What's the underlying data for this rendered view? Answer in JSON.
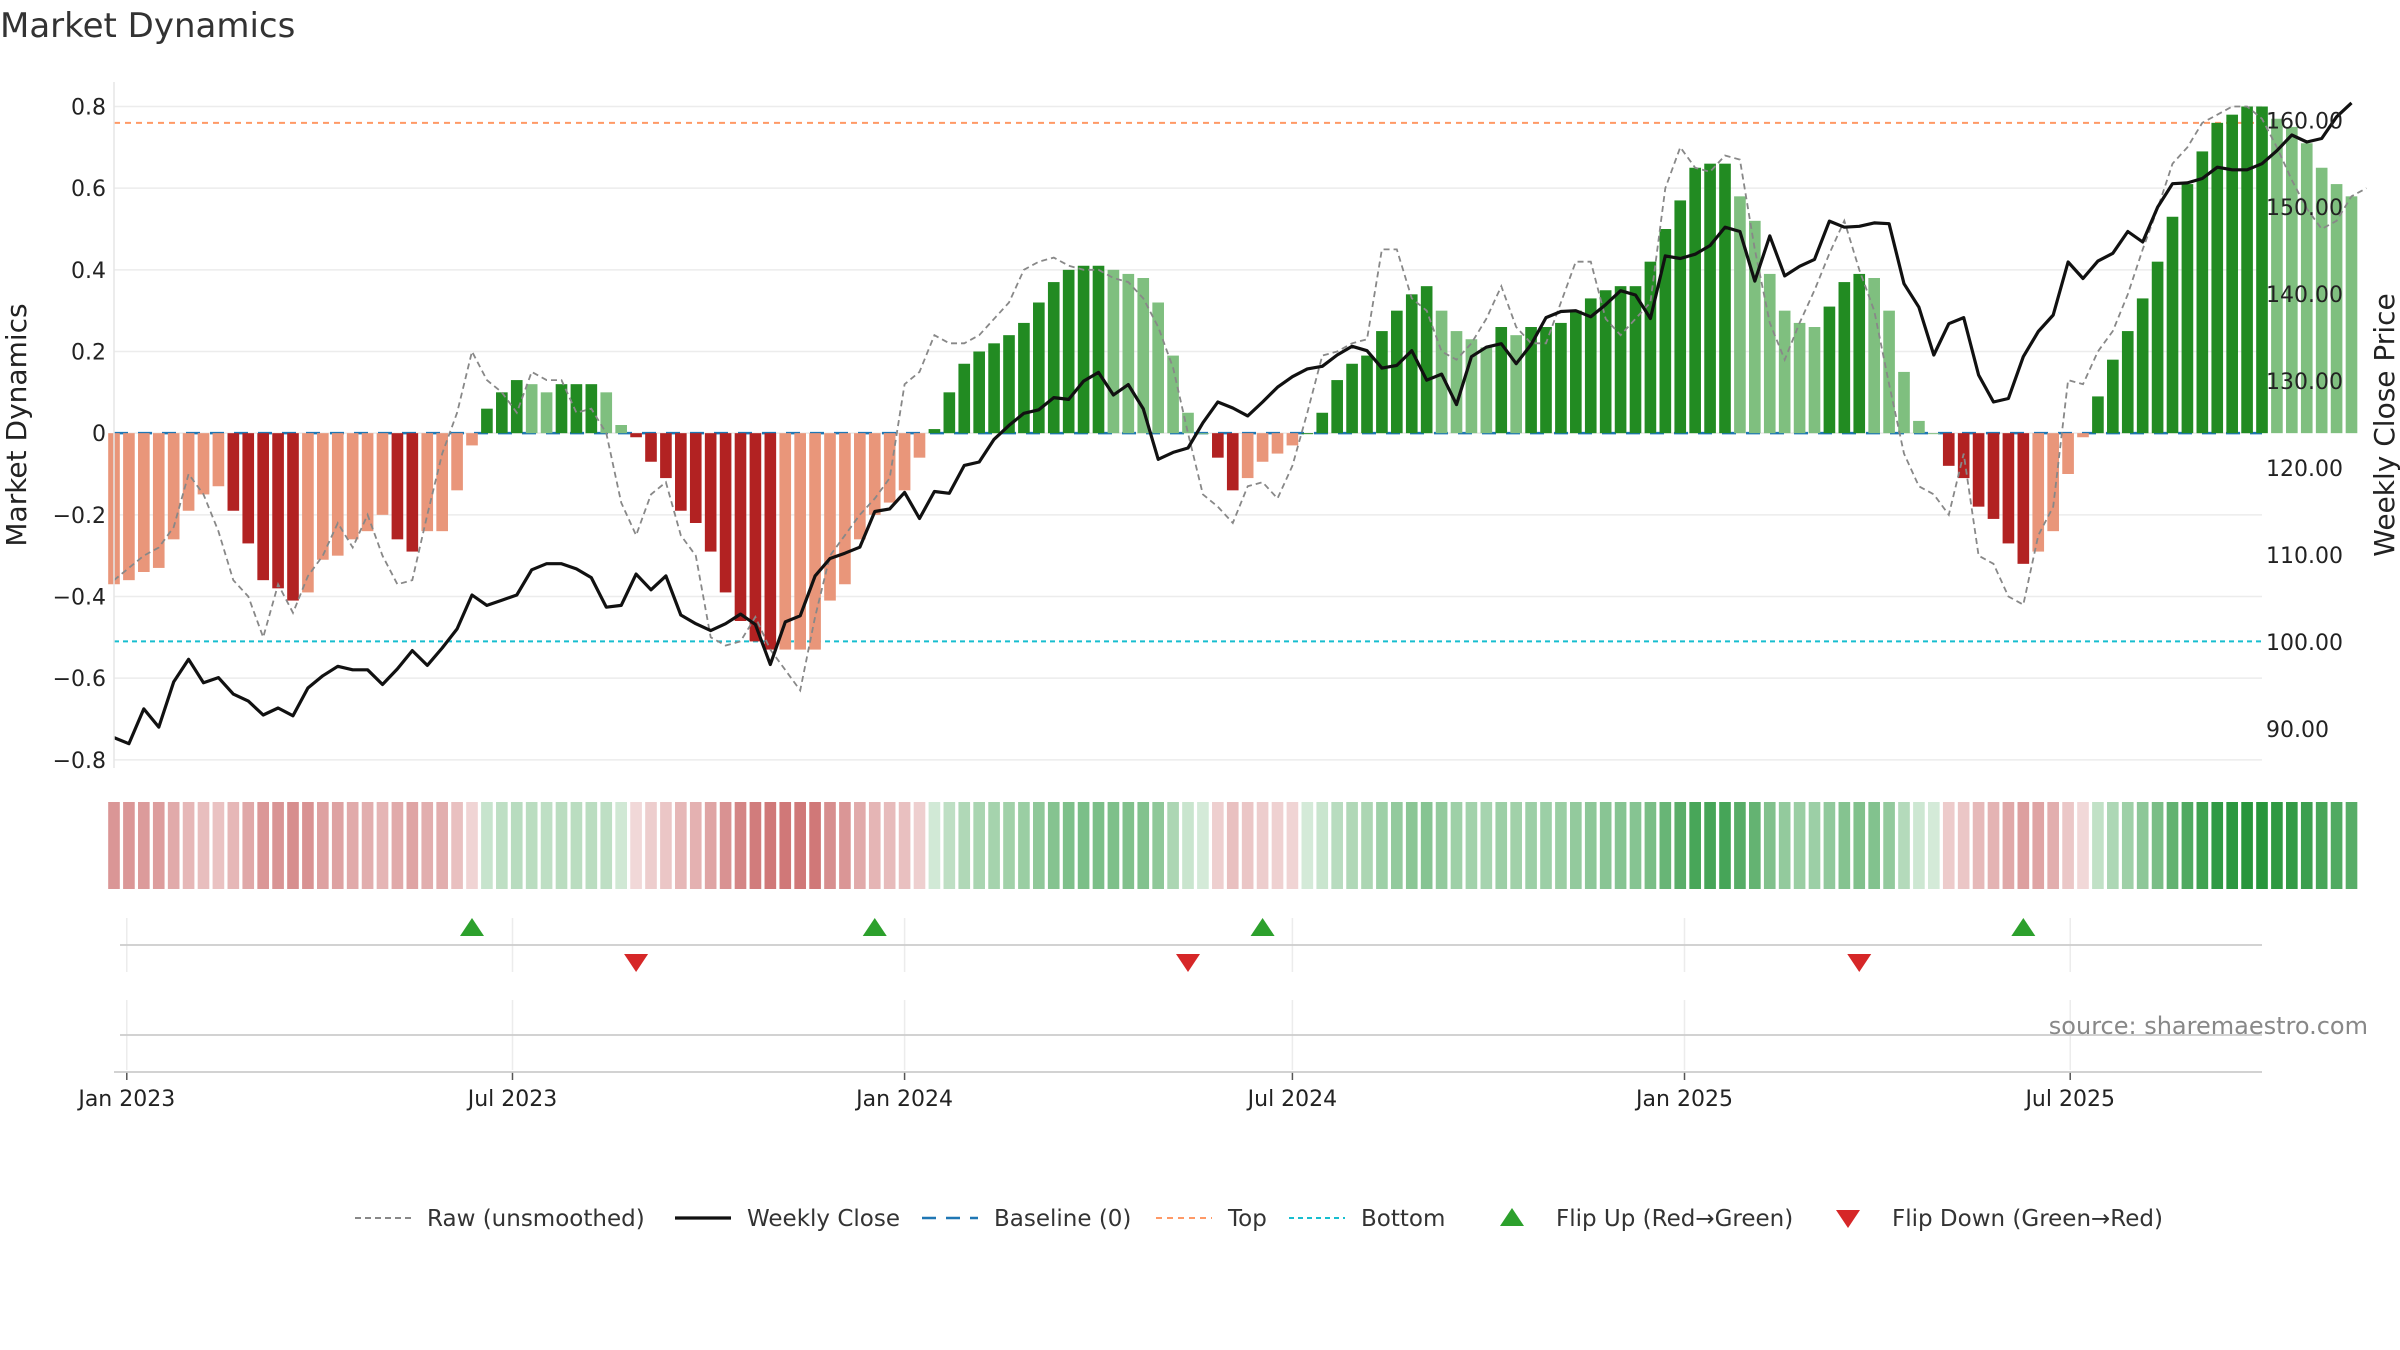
{
  "chart_data": {
    "type": "bar",
    "title": "Market Dynamics",
    "ylabel": "Market Dynamics",
    "y2label": "Weekly Close Price",
    "ylim": [
      -0.82,
      0.86
    ],
    "y2lim": [
      85.5,
      164.4
    ],
    "yticks": [
      0.8,
      0.6,
      0.4,
      0.2,
      0,
      -0.2,
      -0.4,
      -0.6,
      -0.8
    ],
    "ytick_labels": [
      "0.8",
      "0.6",
      "0.4",
      "0.2",
      "0",
      "−0.2",
      "−0.4",
      "−0.6",
      "−0.8"
    ],
    "y2ticks": [
      160,
      150,
      140,
      130,
      120,
      110,
      100,
      90
    ],
    "y2tick_labels": [
      "160.00",
      "150.00",
      "140.00",
      "130.00",
      "120.00",
      "110.00",
      "100.00",
      "90.00"
    ],
    "x_start": "2022-12-26",
    "x_end": "2025-09-29",
    "xticks": [
      "2023-01-01",
      "2023-07-01",
      "2024-01-01",
      "2024-07-01",
      "2025-01-01",
      "2025-07-01"
    ],
    "xtick_labels": [
      "Jan 2023",
      "Jul 2023",
      "Jan 2024",
      "Jul 2024",
      "Jan 2025",
      "Jul 2025"
    ],
    "first_week": "2022-12-26",
    "series": [
      {
        "name": "Market Dynamics",
        "kind": "bar",
        "values": [
          -0.37,
          -0.36,
          -0.34,
          -0.33,
          -0.26,
          -0.19,
          -0.15,
          -0.13,
          -0.19,
          -0.27,
          -0.36,
          -0.38,
          -0.41,
          -0.39,
          -0.31,
          -0.3,
          -0.26,
          -0.24,
          -0.2,
          -0.26,
          -0.29,
          -0.24,
          -0.24,
          -0.14,
          -0.03,
          0.06,
          0.1,
          0.13,
          0.12,
          0.1,
          0.12,
          0.12,
          0.12,
          0.1,
          0.02,
          -0.01,
          -0.07,
          -0.11,
          -0.19,
          -0.22,
          -0.29,
          -0.39,
          -0.46,
          -0.51,
          -0.53,
          -0.53,
          -0.53,
          -0.53,
          -0.41,
          -0.37,
          -0.26,
          -0.2,
          -0.17,
          -0.14,
          -0.06,
          0.01,
          0.1,
          0.17,
          0.2,
          0.22,
          0.24,
          0.27,
          0.32,
          0.37,
          0.4,
          0.41,
          0.41,
          0.4,
          0.39,
          0.38,
          0.32,
          0.19,
          0.05,
          0.0,
          -0.06,
          -0.14,
          -0.11,
          -0.07,
          -0.05,
          -0.03,
          0.0,
          0.05,
          0.13,
          0.17,
          0.19,
          0.25,
          0.3,
          0.34,
          0.36,
          0.3,
          0.25,
          0.23,
          0.21,
          0.26,
          0.24,
          0.26,
          0.26,
          0.27,
          0.3,
          0.33,
          0.35,
          0.36,
          0.36,
          0.42,
          0.5,
          0.57,
          0.65,
          0.66,
          0.66,
          0.58,
          0.52,
          0.39,
          0.3,
          0.27,
          0.26,
          0.31,
          0.37,
          0.39,
          0.38,
          0.3,
          0.15,
          0.03,
          0.0,
          -0.08,
          -0.11,
          -0.18,
          -0.21,
          -0.27,
          -0.32,
          -0.29,
          -0.24,
          -0.1,
          -0.01,
          0.09,
          0.18,
          0.25,
          0.33,
          0.42,
          0.53,
          0.61,
          0.69,
          0.76,
          0.78,
          0.8,
          0.8,
          0.77,
          0.75,
          0.71,
          0.65,
          0.61,
          0.58
        ]
      },
      {
        "name": "Raw (unsmoothed)",
        "kind": "line",
        "values": [
          -0.36,
          -0.33,
          -0.3,
          -0.28,
          -0.23,
          -0.1,
          -0.15,
          -0.24,
          -0.36,
          -0.4,
          -0.5,
          -0.37,
          -0.44,
          -0.35,
          -0.3,
          -0.22,
          -0.28,
          -0.2,
          -0.3,
          -0.37,
          -0.36,
          -0.2,
          -0.05,
          0.05,
          0.2,
          0.13,
          0.1,
          0.05,
          0.15,
          0.13,
          0.13,
          0.05,
          0.06,
          0.0,
          -0.17,
          -0.25,
          -0.15,
          -0.12,
          -0.25,
          -0.3,
          -0.5,
          -0.52,
          -0.51,
          -0.45,
          -0.53,
          -0.58,
          -0.63,
          -0.45,
          -0.3,
          -0.25,
          -0.2,
          -0.16,
          -0.11,
          0.12,
          0.15,
          0.24,
          0.22,
          0.22,
          0.24,
          0.28,
          0.32,
          0.4,
          0.42,
          0.43,
          0.41,
          0.4,
          0.4,
          0.38,
          0.37,
          0.33,
          0.26,
          0.16,
          0.0,
          -0.15,
          -0.18,
          -0.22,
          -0.13,
          -0.12,
          -0.16,
          -0.08,
          0.05,
          0.19,
          0.2,
          0.22,
          0.23,
          0.45,
          0.45,
          0.33,
          0.3,
          0.2,
          0.18,
          0.22,
          0.28,
          0.36,
          0.26,
          0.22,
          0.22,
          0.32,
          0.42,
          0.42,
          0.28,
          0.24,
          0.28,
          0.32,
          0.6,
          0.7,
          0.65,
          0.64,
          0.68,
          0.67,
          0.45,
          0.27,
          0.18,
          0.27,
          0.35,
          0.44,
          0.52,
          0.4,
          0.3,
          0.12,
          -0.05,
          -0.13,
          -0.15,
          -0.2,
          -0.05,
          -0.3,
          -0.32,
          -0.4,
          -0.42,
          -0.25,
          -0.18,
          0.13,
          0.12,
          0.2,
          0.25,
          0.34,
          0.45,
          0.55,
          0.66,
          0.7,
          0.76,
          0.78,
          0.8,
          0.8,
          0.77,
          0.7,
          0.62,
          0.55,
          0.5,
          0.52,
          0.58,
          0.6
        ]
      },
      {
        "name": "Weekly Close",
        "kind": "line",
        "axis": "right",
        "values": [
          89,
          88.3,
          92.3,
          90.2,
          95.4,
          98,
          95.3,
          95.9,
          94,
          93.2,
          91.6,
          92.4,
          91.5,
          94.7,
          96.1,
          97.2,
          96.8,
          96.8,
          95.1,
          96.9,
          99,
          97.3,
          99.3,
          101.5,
          105.4,
          104.2,
          104.8,
          105.4,
          108.3,
          109,
          109,
          108.4,
          107.4,
          104,
          104.2,
          107.8,
          106,
          107.6,
          103.1,
          102.1,
          101.3,
          102.1,
          103.2,
          102,
          97.4,
          102.3,
          103,
          107.6,
          109.6,
          110.2,
          110.9,
          115,
          115.3,
          117.2,
          114.2,
          117.3,
          117.1,
          120.3,
          120.7,
          123.3,
          124.9,
          126.3,
          126.7,
          128.1,
          127.9,
          130,
          131,
          128.4,
          129.6,
          126.8,
          121,
          121.8,
          122.3,
          125.2,
          127.6,
          126.9,
          126,
          127.6,
          129.3,
          130.5,
          131.4,
          131.7,
          133,
          134,
          133.5,
          131.5,
          131.8,
          133.5,
          130.1,
          130.8,
          127.3,
          132.8,
          133.9,
          134.3,
          132,
          134.2,
          137.3,
          138,
          138.1,
          137.4,
          138.8,
          140.4,
          139.9,
          137.2,
          144.4,
          144.1,
          144.6,
          145.6,
          147.7,
          147.2,
          141.5,
          146.7,
          142.1,
          143.2,
          144,
          148.4,
          147.7,
          147.8,
          148.2,
          148.1,
          141.2,
          138.5,
          133,
          136.6,
          137.3,
          130.7,
          127.6,
          128,
          132.8,
          135.7,
          137.6,
          143.7,
          141.8,
          143.8,
          144.7,
          147.2,
          146,
          150,
          152.7,
          152.8,
          153.3,
          154.6,
          154.3,
          154.3,
          155,
          156.5,
          158.3,
          157.5,
          157.9,
          160.4,
          162
        ]
      }
    ],
    "reference_lines": [
      {
        "name": "Baseline (0)",
        "value": 0,
        "color": "#1f77b4"
      },
      {
        "name": "Top",
        "value": 0.76,
        "color": "#ff9966"
      },
      {
        "name": "Bottom",
        "value": -0.51,
        "color": "#17becf"
      }
    ],
    "flips": [
      {
        "name": "Flip Up (Red→Green)",
        "dates": [
          "2023-06-12",
          "2023-12-18",
          "2024-06-17",
          "2025-06-09"
        ],
        "color": "#2ca02c"
      },
      {
        "name": "Flip Down (Green→Red)",
        "dates": [
          "2023-08-28",
          "2024-05-13",
          "2025-03-24"
        ],
        "color": "#d62728"
      }
    ],
    "legend": [
      "Raw (unsmoothed)",
      "Weekly Close",
      "Baseline (0)",
      "Top",
      "Bottom",
      "Flip Up (Red→Green)",
      "Flip Down (Green→Red)"
    ],
    "legend_placement": "bottom",
    "grid": true,
    "colors": {
      "strong_green": "#228b22",
      "light_green": "#7fbf7f",
      "strong_red": "#b22222",
      "light_red": "#e9967a",
      "price_line": "#111111",
      "raw_line": "#888888"
    },
    "source": "source: sharemaestro.com"
  }
}
